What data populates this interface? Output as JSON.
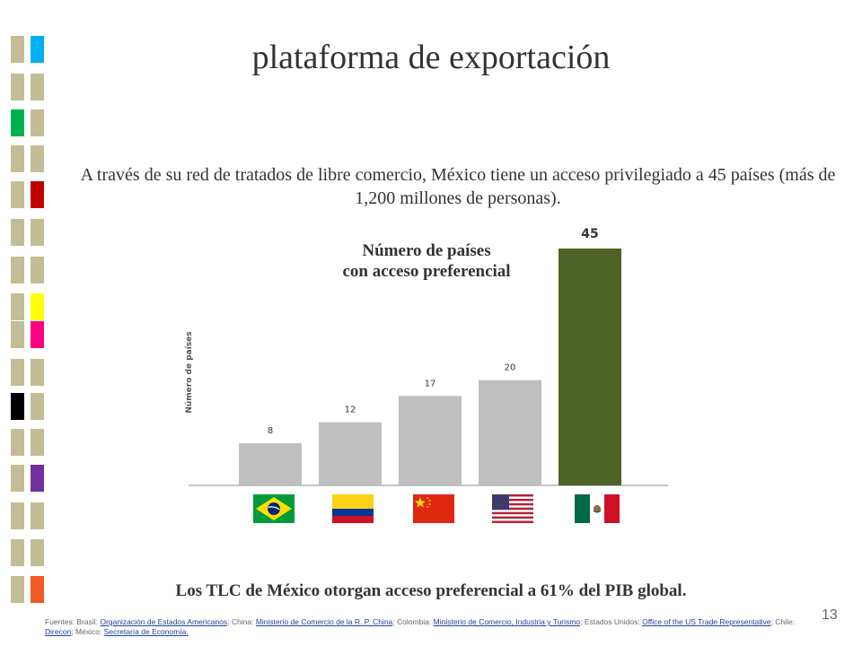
{
  "slide": {
    "title": "plataforma de exportación",
    "intro": "A través de su red de tratados de libre comercio, México tiene un acceso privilegiado a 45 países (más de 1,200 millones de personas).",
    "conclusion": "Los TLC de México otorgan acceso preferencial a 61% del PIB global.",
    "page_number": "13",
    "sources": {
      "prefix": "Fuentes: Brasil: ",
      "brasil_link": "Organización de Estados Americanos",
      "china_prefix": "; China: ",
      "china_link": "Ministerio de Comercio de la R. P. China",
      "colombia_prefix": "; Colombia: ",
      "colombia_link": "Ministerio de Comercio, Industria y Turismo",
      "usa_prefix": "; Estados Unidos: ",
      "usa_link": "Office of the US Trade Representative",
      "chile_prefix": "; Chile: ",
      "chile_link": "Direcon",
      "mexico_prefix": "; México: ",
      "mexico_link": "Secretaría de Economía."
    }
  },
  "colors": {
    "bar_default": "#bfbfbf",
    "bar_highlight": "#4f6228",
    "deco_base": "#c4bc96",
    "deco_accents": [
      "#00b0f0",
      "#00b050",
      "#c00000",
      "#ffff00",
      "#ff0080",
      "#000000",
      "#7030a0",
      "#f15a24"
    ]
  },
  "chart_data": {
    "type": "bar",
    "title": "Número de países\ncon acceso preferencial",
    "ylabel": "Número de países",
    "categories": [
      "Brasil",
      "Colombia",
      "China",
      "Estados Unidos",
      "México"
    ],
    "category_icons": [
      "brazil-flag-icon",
      "colombia-flag-icon",
      "china-flag-icon",
      "usa-flag-icon",
      "mexico-flag-icon"
    ],
    "values": [
      8,
      12,
      17,
      20,
      45
    ],
    "value_labels": [
      "8",
      "12",
      "17",
      "20",
      "45"
    ],
    "highlight_index": 4,
    "ylim": [
      0,
      45
    ],
    "grid": false
  }
}
